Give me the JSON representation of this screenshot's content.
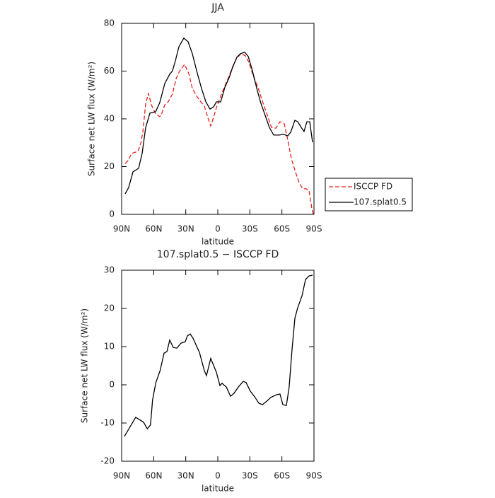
{
  "chart_data": [
    {
      "type": "line",
      "title": "JJA",
      "xlabel": "latitude",
      "ylabel": "Surface net LW flux (W/m²)",
      "xlim": [
        90,
        -90
      ],
      "xticks": [
        {
          "value": 90,
          "label": "90N"
        },
        {
          "value": 60,
          "label": "60N"
        },
        {
          "value": 30,
          "label": "30N"
        },
        0,
        {
          "value": -30,
          "label": "30S"
        },
        {
          "value": -60,
          "label": "60S"
        },
        {
          "value": -90,
          "label": "90S"
        }
      ],
      "ylim": [
        0,
        80
      ],
      "yticks": [
        0,
        20,
        40,
        60,
        80
      ],
      "legend": "right",
      "series": [
        {
          "name": "ISCCP FD",
          "color": "#e8201c",
          "linestyle": "dashed",
          "x": [
            86.7,
            84,
            80.7,
            74.7,
            72.1,
            70.1,
            67.5,
            64.9,
            62.2,
            58.2,
            54.3,
            52.3,
            49.6,
            46.4,
            42.4,
            39,
            35.7,
            31.1,
            27.1,
            23.8,
            19.8,
            15.9,
            12.6,
            9.3,
            6.6,
            4,
            1.3,
            -2.7,
            -6.7,
            -10,
            -13.9,
            -17.9,
            -21.8,
            -25.8,
            -29.1,
            -33.1,
            -37.7,
            -42.4,
            -46.4,
            -50.3,
            -54.3,
            -58.2,
            -62.2,
            -65.5,
            -68.8,
            -72.8,
            -76.1,
            -79.4,
            -82.7,
            -85.4,
            -88,
            -89.4
          ],
          "values": [
            21.3,
            22.5,
            25.5,
            26.4,
            29.6,
            34.7,
            46.2,
            50.7,
            45.9,
            42.1,
            40.9,
            42.4,
            45.9,
            47.1,
            50.4,
            56.9,
            60.1,
            62.8,
            59,
            52.7,
            49.5,
            47.1,
            45.3,
            40.6,
            37,
            40.6,
            44.7,
            49.5,
            53.9,
            57.2,
            61.9,
            65.5,
            67.3,
            66.4,
            63.7,
            58.1,
            53,
            46.5,
            41.5,
            36.4,
            36.1,
            38.8,
            37.9,
            31.1,
            23.4,
            17.5,
            13.3,
            10.7,
            10.7,
            10.1,
            2.4,
            0
          ]
        },
        {
          "name": "107.splat0.5",
          "color": "#000000",
          "linestyle": "solid",
          "x": [
            86.7,
            83.4,
            79.4,
            74.1,
            70.8,
            67.5,
            63.5,
            58.2,
            54.3,
            49.6,
            45,
            42.4,
            39.7,
            36.4,
            31.8,
            27.8,
            23.8,
            19.8,
            15.2,
            11.2,
            7.3,
            4,
            1.3,
            -2.7,
            -6.7,
            -10.6,
            -13.9,
            -17.9,
            -21.2,
            -25.2,
            -28.5,
            -32.4,
            -37.1,
            -40.4,
            -44.3,
            -48.3,
            -52.3,
            -57.6,
            -61.5,
            -65.5,
            -68.2,
            -72.1,
            -74.8,
            -78.1,
            -80.7,
            -83.4,
            -86,
            -88.7
          ],
          "values": [
            8.6,
            11.3,
            17.8,
            19.3,
            25.5,
            36.4,
            42.4,
            43,
            46.8,
            54.8,
            58.7,
            60.1,
            64.3,
            70.2,
            73.8,
            72.3,
            67.3,
            60.1,
            52.7,
            47.1,
            44.1,
            45,
            47.1,
            47.1,
            53.3,
            57.2,
            61.6,
            65.8,
            67.3,
            67.9,
            66.1,
            60.1,
            51.6,
            46.5,
            41.5,
            36.4,
            33.2,
            33.2,
            33.5,
            32.9,
            34.4,
            39.4,
            38.8,
            36.4,
            34.7,
            38.8,
            38.8,
            30.2
          ]
        }
      ]
    },
    {
      "type": "line",
      "title": "107.splat0.5 − ISCCP FD",
      "xlabel": "latitude",
      "ylabel": "Surface net LW flux (W/m²)",
      "xlim": [
        90,
        -90
      ],
      "xticks": [
        {
          "value": 90,
          "label": "90N"
        },
        {
          "value": 60,
          "label": "60N"
        },
        {
          "value": 30,
          "label": "30N"
        },
        0,
        {
          "value": -30,
          "label": "30S"
        },
        {
          "value": -60,
          "label": "60S"
        },
        {
          "value": -90,
          "label": "90S"
        }
      ],
      "ylim": [
        -20,
        30
      ],
      "yticks": [
        -20,
        -10,
        0,
        10,
        20,
        30
      ],
      "series": [
        {
          "color": "#000000",
          "linestyle": "solid",
          "x": [
            87.4,
            76.8,
            69.5,
            66,
            63,
            61,
            58,
            54,
            50.3,
            47.6,
            45,
            41.7,
            38.4,
            34.4,
            30.4,
            28.5,
            25.8,
            23.2,
            17.2,
            12.6,
            10.6,
            6.6,
            1.3,
            -2,
            -4,
            -8,
            -11.9,
            -15.2,
            -19.2,
            -23.8,
            -26.5,
            -30.5,
            -34.4,
            -38.4,
            -41.7,
            -45.7,
            -49.6,
            -54.9,
            -58.2,
            -60.9,
            -64.2,
            -66.8,
            -69.5,
            -72.1,
            -74.8,
            -78.8,
            -82.1,
            -85.4,
            -88.7
          ],
          "values": [
            -13.5,
            -8.5,
            -9.8,
            -11.5,
            -10.5,
            -3.9,
            0.6,
            3.7,
            8.3,
            8.7,
            11.7,
            9.8,
            9.6,
            10.9,
            11.3,
            12.8,
            13.3,
            12.2,
            8.5,
            3.7,
            2.4,
            6.9,
            3.3,
            -0.2,
            0.4,
            -0.6,
            -3,
            -2.2,
            -0.6,
            0.9,
            0.6,
            -1.7,
            -3.1,
            -4.8,
            -5.2,
            -4.3,
            -3.3,
            -2.6,
            -2.4,
            -5.2,
            -5.4,
            -0.6,
            9.3,
            17.4,
            20.2,
            23.3,
            27.6,
            28.5,
            28.7
          ]
        }
      ]
    }
  ]
}
